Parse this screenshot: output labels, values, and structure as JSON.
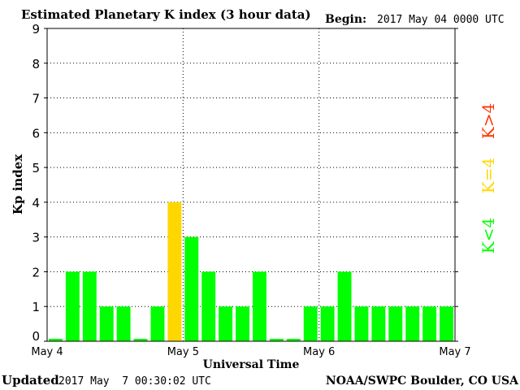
{
  "header": {
    "title": "Estimated Planetary K index (3 hour data)",
    "begin_label": "Begin:",
    "begin_value": "2017 May 04 0000 UTC"
  },
  "footer": {
    "updated_label": "Updated",
    "updated_value": "2017 May  7 00:30:02 UTC",
    "source": "NOAA/SWPC Boulder, CO USA"
  },
  "legend": {
    "high": "K>4",
    "mid": "K=4",
    "low": "K<4"
  },
  "colors": {
    "low": "#00ff00",
    "mid": "#ffd700",
    "high": "#ff3300",
    "grid": "#000000"
  },
  "chart_data": {
    "type": "bar",
    "title": "Estimated Planetary K index (3 hour data)",
    "xlabel": "Universal Time",
    "ylabel": "Kp index",
    "ylim": [
      0,
      9
    ],
    "yticks": [
      "0",
      "1",
      "2",
      "3",
      "4",
      "5",
      "6",
      "7",
      "8",
      "9"
    ],
    "xticks": [
      "May 4",
      "May 5",
      "May 6",
      "May 7"
    ],
    "grid": true,
    "interval_hours": 3,
    "values": [
      0,
      2,
      2,
      1,
      1,
      0,
      1,
      4,
      3,
      2,
      1,
      1,
      2,
      0,
      0,
      1,
      1,
      2,
      1,
      1,
      1,
      1,
      1,
      1
    ]
  }
}
